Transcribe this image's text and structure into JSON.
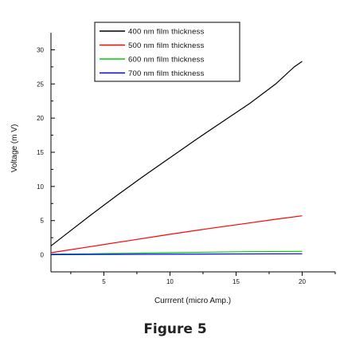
{
  "chart_data": {
    "type": "line",
    "title": "",
    "xlabel": "Currrent (micro Amp.)",
    "ylabel": "Voltage (m V)",
    "xlim": [
      1,
      22.5
    ],
    "ylim": [
      -2.5,
      32.5
    ],
    "x_ticks": [
      5,
      10,
      15,
      20
    ],
    "y_ticks": [
      0,
      5,
      10,
      15,
      20,
      25,
      30
    ],
    "grid": false,
    "legend_position": "top-right",
    "series": [
      {
        "name": "400 nm film thickness",
        "color": "#000000",
        "points": [
          [
            1,
            1.3
          ],
          [
            2,
            2.8
          ],
          [
            4,
            5.8
          ],
          [
            6,
            8.7
          ],
          [
            8,
            11.5
          ],
          [
            10,
            14.2
          ],
          [
            12,
            16.9
          ],
          [
            14,
            19.5
          ],
          [
            16,
            22.1
          ],
          [
            18,
            25.0
          ],
          [
            19.4,
            27.5
          ],
          [
            20,
            28.3
          ]
        ]
      },
      {
        "name": "500 nm film thickness",
        "color": "#ff0000",
        "points": [
          [
            1,
            0.3
          ],
          [
            4,
            1.2
          ],
          [
            7,
            2.1
          ],
          [
            10,
            3.0
          ],
          [
            13,
            3.85
          ],
          [
            16,
            4.65
          ],
          [
            18,
            5.2
          ],
          [
            20,
            5.7
          ]
        ]
      },
      {
        "name": "600 nm film thickness",
        "color": "#00cc00",
        "points": [
          [
            1,
            0.1
          ],
          [
            4,
            0.15
          ],
          [
            7,
            0.22
          ],
          [
            10,
            0.3
          ],
          [
            13,
            0.38
          ],
          [
            16,
            0.45
          ],
          [
            20,
            0.5
          ]
        ]
      },
      {
        "name": "700 nm film thickness",
        "color": "#0000ff",
        "points": [
          [
            1,
            0.02
          ],
          [
            5,
            0.05
          ],
          [
            10,
            0.08
          ],
          [
            15,
            0.12
          ],
          [
            20,
            0.15
          ]
        ]
      }
    ]
  },
  "caption": "Figure 5"
}
